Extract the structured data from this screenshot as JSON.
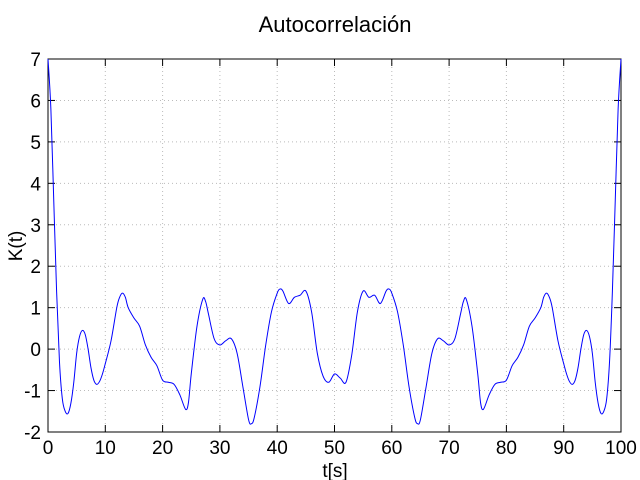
{
  "chart_data": {
    "type": "line",
    "title": "Autocorrelación",
    "xlabel": "t[s]",
    "ylabel": "K(t)",
    "xlim": [
      0,
      100
    ],
    "ylim": [
      -2,
      7
    ],
    "xticks": [
      "0",
      "10",
      "20",
      "30",
      "40",
      "50",
      "60",
      "70",
      "80",
      "90",
      "100"
    ],
    "yticks": [
      "-2",
      "-1",
      "0",
      "1",
      "2",
      "3",
      "4",
      "5",
      "6",
      "7"
    ],
    "grid": true,
    "series": [
      {
        "color": "#0000ff",
        "points": [
          [
            0,
            7.0
          ],
          [
            0.5,
            5.8
          ],
          [
            1,
            3.6
          ],
          [
            1.5,
            1.4
          ],
          [
            2,
            -0.3
          ],
          [
            2.5,
            -1.2
          ],
          [
            3,
            -1.5
          ],
          [
            3.5,
            -1.55
          ],
          [
            4,
            -1.3
          ],
          [
            4.5,
            -0.8
          ],
          [
            5,
            -0.1
          ],
          [
            5.5,
            0.3
          ],
          [
            6,
            0.45
          ],
          [
            6.5,
            0.35
          ],
          [
            7,
            0.0
          ],
          [
            7.5,
            -0.45
          ],
          [
            8,
            -0.75
          ],
          [
            8.5,
            -0.85
          ],
          [
            9,
            -0.78
          ],
          [
            9.5,
            -0.6
          ],
          [
            10,
            -0.35
          ],
          [
            11,
            0.2
          ],
          [
            12,
            1.0
          ],
          [
            12.5,
            1.25
          ],
          [
            13,
            1.35
          ],
          [
            13.5,
            1.25
          ],
          [
            14,
            1.0
          ],
          [
            15,
            0.75
          ],
          [
            16,
            0.55
          ],
          [
            17,
            0.1
          ],
          [
            18,
            -0.2
          ],
          [
            19,
            -0.4
          ],
          [
            20,
            -0.75
          ],
          [
            21,
            -0.8
          ],
          [
            22,
            -0.85
          ],
          [
            23,
            -1.1
          ],
          [
            24,
            -1.45
          ],
          [
            24.5,
            -1.3
          ],
          [
            25,
            -0.6
          ],
          [
            26,
            0.55
          ],
          [
            27,
            1.2
          ],
          [
            27.5,
            1.15
          ],
          [
            28,
            0.85
          ],
          [
            29,
            0.25
          ],
          [
            30,
            0.1
          ],
          [
            31,
            0.2
          ],
          [
            32,
            0.25
          ],
          [
            33,
            -0.1
          ],
          [
            34,
            -0.9
          ],
          [
            35,
            -1.7
          ],
          [
            35.5,
            -1.8
          ],
          [
            36,
            -1.65
          ],
          [
            37,
            -0.9
          ],
          [
            38,
            0.1
          ],
          [
            39,
            0.9
          ],
          [
            40,
            1.35
          ],
          [
            40.5,
            1.45
          ],
          [
            41,
            1.4
          ],
          [
            42,
            1.1
          ],
          [
            43,
            1.25
          ],
          [
            44,
            1.3
          ],
          [
            45,
            1.4
          ],
          [
            46,
            0.9
          ],
          [
            47,
            -0.1
          ],
          [
            48,
            -0.65
          ],
          [
            49,
            -0.8
          ],
          [
            50,
            -0.6
          ],
          [
            51,
            -0.7
          ],
          [
            52,
            -0.8
          ],
          [
            53,
            -0.15
          ],
          [
            54,
            0.9
          ],
          [
            55,
            1.4
          ],
          [
            56,
            1.25
          ],
          [
            57,
            1.3
          ],
          [
            58,
            1.1
          ],
          [
            59,
            1.4
          ],
          [
            59.5,
            1.45
          ],
          [
            60,
            1.35
          ],
          [
            61,
            0.9
          ],
          [
            62,
            0.1
          ],
          [
            63,
            -0.9
          ],
          [
            64,
            -1.65
          ],
          [
            64.5,
            -1.8
          ],
          [
            65,
            -1.7
          ],
          [
            66,
            -0.9
          ],
          [
            67,
            -0.1
          ],
          [
            68,
            0.25
          ],
          [
            69,
            0.2
          ],
          [
            70,
            0.1
          ],
          [
            71,
            0.25
          ],
          [
            72,
            0.85
          ],
          [
            72.5,
            1.15
          ],
          [
            73,
            1.2
          ],
          [
            74,
            0.55
          ],
          [
            75,
            -0.6
          ],
          [
            75.5,
            -1.3
          ],
          [
            76,
            -1.45
          ],
          [
            77,
            -1.1
          ],
          [
            78,
            -0.85
          ],
          [
            79,
            -0.8
          ],
          [
            80,
            -0.75
          ],
          [
            81,
            -0.4
          ],
          [
            82,
            -0.2
          ],
          [
            83,
            0.1
          ],
          [
            84,
            0.55
          ],
          [
            85,
            0.75
          ],
          [
            86,
            1.0
          ],
          [
            86.5,
            1.25
          ],
          [
            87,
            1.35
          ],
          [
            87.5,
            1.25
          ],
          [
            88,
            1.0
          ],
          [
            89,
            0.2
          ],
          [
            90,
            -0.35
          ],
          [
            90.5,
            -0.6
          ],
          [
            91,
            -0.78
          ],
          [
            91.5,
            -0.85
          ],
          [
            92,
            -0.75
          ],
          [
            92.5,
            -0.45
          ],
          [
            93,
            0.0
          ],
          [
            93.5,
            0.35
          ],
          [
            94,
            0.45
          ],
          [
            94.5,
            0.3
          ],
          [
            95,
            -0.1
          ],
          [
            95.5,
            -0.8
          ],
          [
            96,
            -1.3
          ],
          [
            96.5,
            -1.55
          ],
          [
            97,
            -1.5
          ],
          [
            97.5,
            -1.2
          ],
          [
            98,
            -0.3
          ],
          [
            98.5,
            1.4
          ],
          [
            99,
            3.6
          ],
          [
            99.5,
            5.8
          ],
          [
            100,
            7.0
          ]
        ]
      }
    ]
  }
}
